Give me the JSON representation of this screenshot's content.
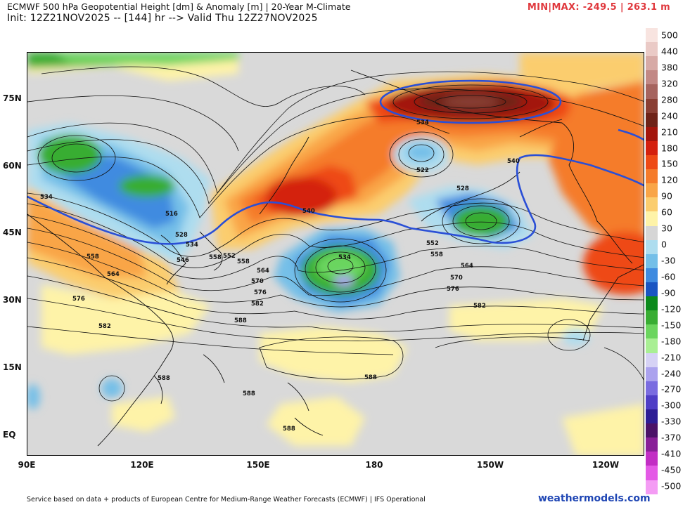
{
  "header": {
    "title_line1": "ECMWF 500 hPa Geopotential Height [dm] & Anomaly [m] | 20-Year M-Climate",
    "title_line2": "Init: 12Z21NOV2025 -- [144] hr --> Valid Thu 12Z27NOV2025",
    "minmax": "MIN|MAX: -249.5 | 263.1 m"
  },
  "axes": {
    "lat_labels": [
      "75N",
      "60N",
      "45N",
      "30N",
      "15N",
      "EQ"
    ],
    "lon_labels": [
      "90E",
      "120E",
      "150E",
      "180",
      "150W",
      "120W"
    ]
  },
  "colorbar": {
    "ticks": [
      "500",
      "440",
      "380",
      "320",
      "280",
      "240",
      "210",
      "180",
      "150",
      "120",
      "90",
      "60",
      "30",
      "0",
      "-30",
      "-60",
      "-90",
      "-120",
      "-150",
      "-180",
      "-210",
      "-240",
      "-270",
      "-300",
      "-330",
      "-370",
      "-410",
      "-450",
      "-500"
    ],
    "colors": [
      "#f8e4e0",
      "#eacac6",
      "#d7aaa6",
      "#c28885",
      "#a6645f",
      "#8a3f34",
      "#6e2318",
      "#a3150c",
      "#d4200e",
      "#ee4a16",
      "#f57b2a",
      "#f9a547",
      "#fbcd6e",
      "#fef3a8",
      "#d6d6d6",
      "#aeddef",
      "#74bfe8",
      "#3f8be0",
      "#1a55c2",
      "#0b8a1c",
      "#38ad33",
      "#6bd55e",
      "#a9ef94",
      "#d6d2f5",
      "#aba2ee",
      "#7a6ce0",
      "#4f3ec6",
      "#2d1d95",
      "#4b1268",
      "#891f98",
      "#c22ec4",
      "#e45ae6",
      "#f49cf4"
    ]
  },
  "contour_labels": [
    "534",
    "516",
    "528",
    "534",
    "546",
    "552",
    "558",
    "558",
    "564",
    "570",
    "576",
    "582",
    "588",
    "522",
    "528",
    "534",
    "540",
    "540",
    "534",
    "552",
    "558",
    "564",
    "570",
    "576",
    "582",
    "588",
    "588",
    "588",
    "588",
    "576",
    "582",
    "564",
    "558"
  ],
  "footer": {
    "credit": "Service based on data + products of European Centre for Medium-Range Weather Forecasts (ECMWF) | IFS Operational",
    "brand": "weathermodels.com"
  }
}
